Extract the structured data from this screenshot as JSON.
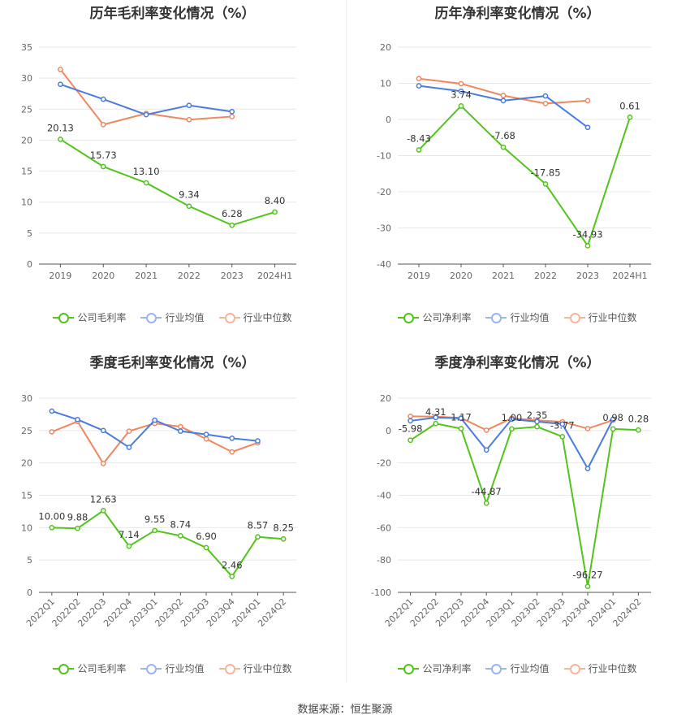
{
  "colors": {
    "company": "#52c41a",
    "avg": "#4a7cde",
    "median": "#f08760",
    "grid": "#e8e8e8"
  },
  "legend": {
    "company_gross": "公司毛利率",
    "company_net": "公司净利率",
    "avg": "行业均值",
    "median": "行业中位数"
  },
  "footer": "数据来源：恒生聚源",
  "chart_data": [
    {
      "type": "line",
      "title": "历年毛利率变化情况（%）",
      "categories": [
        "2019",
        "2020",
        "2021",
        "2022",
        "2023",
        "2024H1"
      ],
      "ylim": [
        0,
        35
      ],
      "yticks": [
        0,
        5,
        10,
        15,
        20,
        25,
        30,
        35
      ],
      "series": [
        {
          "name": "公司毛利率",
          "values": [
            20.13,
            15.73,
            13.1,
            9.34,
            6.28,
            8.4
          ],
          "labels": [
            "20.13",
            "15.73",
            "13.10",
            "9.34",
            "6.28",
            "8.40"
          ]
        },
        {
          "name": "行业均值",
          "values": [
            29.0,
            26.6,
            24.1,
            25.6,
            24.6,
            null
          ]
        },
        {
          "name": "行业中位数",
          "values": [
            31.4,
            22.5,
            24.3,
            23.3,
            23.8,
            null
          ]
        }
      ]
    },
    {
      "type": "line",
      "title": "历年净利率变化情况（%）",
      "categories": [
        "2019",
        "2020",
        "2021",
        "2022",
        "2023",
        "2024H1"
      ],
      "ylim": [
        -40,
        20
      ],
      "yticks": [
        -40,
        -30,
        -20,
        -10,
        0,
        10,
        20
      ],
      "series": [
        {
          "name": "公司净利率",
          "values": [
            -8.43,
            3.74,
            -7.68,
            -17.85,
            -34.93,
            0.61
          ],
          "labels": [
            "-8.43",
            "3.74",
            "-7.68",
            "-17.85",
            "-34.93",
            "0.61"
          ]
        },
        {
          "name": "行业均值",
          "values": [
            9.3,
            7.8,
            5.2,
            6.5,
            -2.2,
            null
          ]
        },
        {
          "name": "行业中位数",
          "values": [
            11.3,
            9.9,
            6.6,
            4.4,
            5.2,
            null
          ]
        }
      ]
    },
    {
      "type": "line",
      "title": "季度毛利率变化情况（%）",
      "categories": [
        "2022Q1",
        "2022Q2",
        "2022Q3",
        "2022Q4",
        "2023Q1",
        "2023Q2",
        "2023Q3",
        "2023Q4",
        "2024Q1",
        "2024Q2"
      ],
      "ylim": [
        0,
        30
      ],
      "yticks": [
        0,
        5,
        10,
        15,
        20,
        25,
        30
      ],
      "series": [
        {
          "name": "公司毛利率",
          "values": [
            10.0,
            9.88,
            12.63,
            7.14,
            9.55,
            8.74,
            6.9,
            2.46,
            8.57,
            8.25
          ],
          "labels": [
            "10.00",
            "9.88",
            "12.63",
            "7.14",
            "9.55",
            "8.74",
            "6.90",
            "2.46",
            "8.57",
            "8.25"
          ]
        },
        {
          "name": "行业均值",
          "values": [
            28.0,
            26.7,
            25.0,
            22.4,
            26.6,
            24.9,
            24.4,
            23.8,
            23.4,
            null
          ]
        },
        {
          "name": "行业中位数",
          "values": [
            24.8,
            26.4,
            19.9,
            24.9,
            26.1,
            25.6,
            23.7,
            21.7,
            23.1,
            null
          ]
        }
      ]
    },
    {
      "type": "line",
      "title": "季度净利率变化情况（%）",
      "categories": [
        "2022Q1",
        "2022Q2",
        "2022Q3",
        "2022Q4",
        "2023Q1",
        "2023Q2",
        "2023Q3",
        "2023Q4",
        "2024Q1",
        "2024Q2"
      ],
      "ylim": [
        -100,
        20
      ],
      "yticks": [
        -100,
        -80,
        -60,
        -40,
        -20,
        0,
        20
      ],
      "series": [
        {
          "name": "公司净利率",
          "values": [
            -5.98,
            4.31,
            1.17,
            -44.87,
            1.0,
            2.35,
            -3.77,
            -96.27,
            0.98,
            0.28
          ],
          "labels": [
            "-5.98",
            "4.31",
            "1.17",
            "-44.87",
            "1.00",
            "2.35",
            "-3.77",
            "-96.27",
            "0.98",
            "0.28"
          ]
        },
        {
          "name": "行业均值",
          "values": [
            6.0,
            8.0,
            7.5,
            -12.0,
            7.0,
            5.5,
            4.0,
            -23.5,
            7.0,
            null
          ]
        },
        {
          "name": "行业中位数",
          "values": [
            8.8,
            8.6,
            7.8,
            0.2,
            7.6,
            6.3,
            5.4,
            1.2,
            6.4,
            null
          ]
        }
      ]
    }
  ]
}
